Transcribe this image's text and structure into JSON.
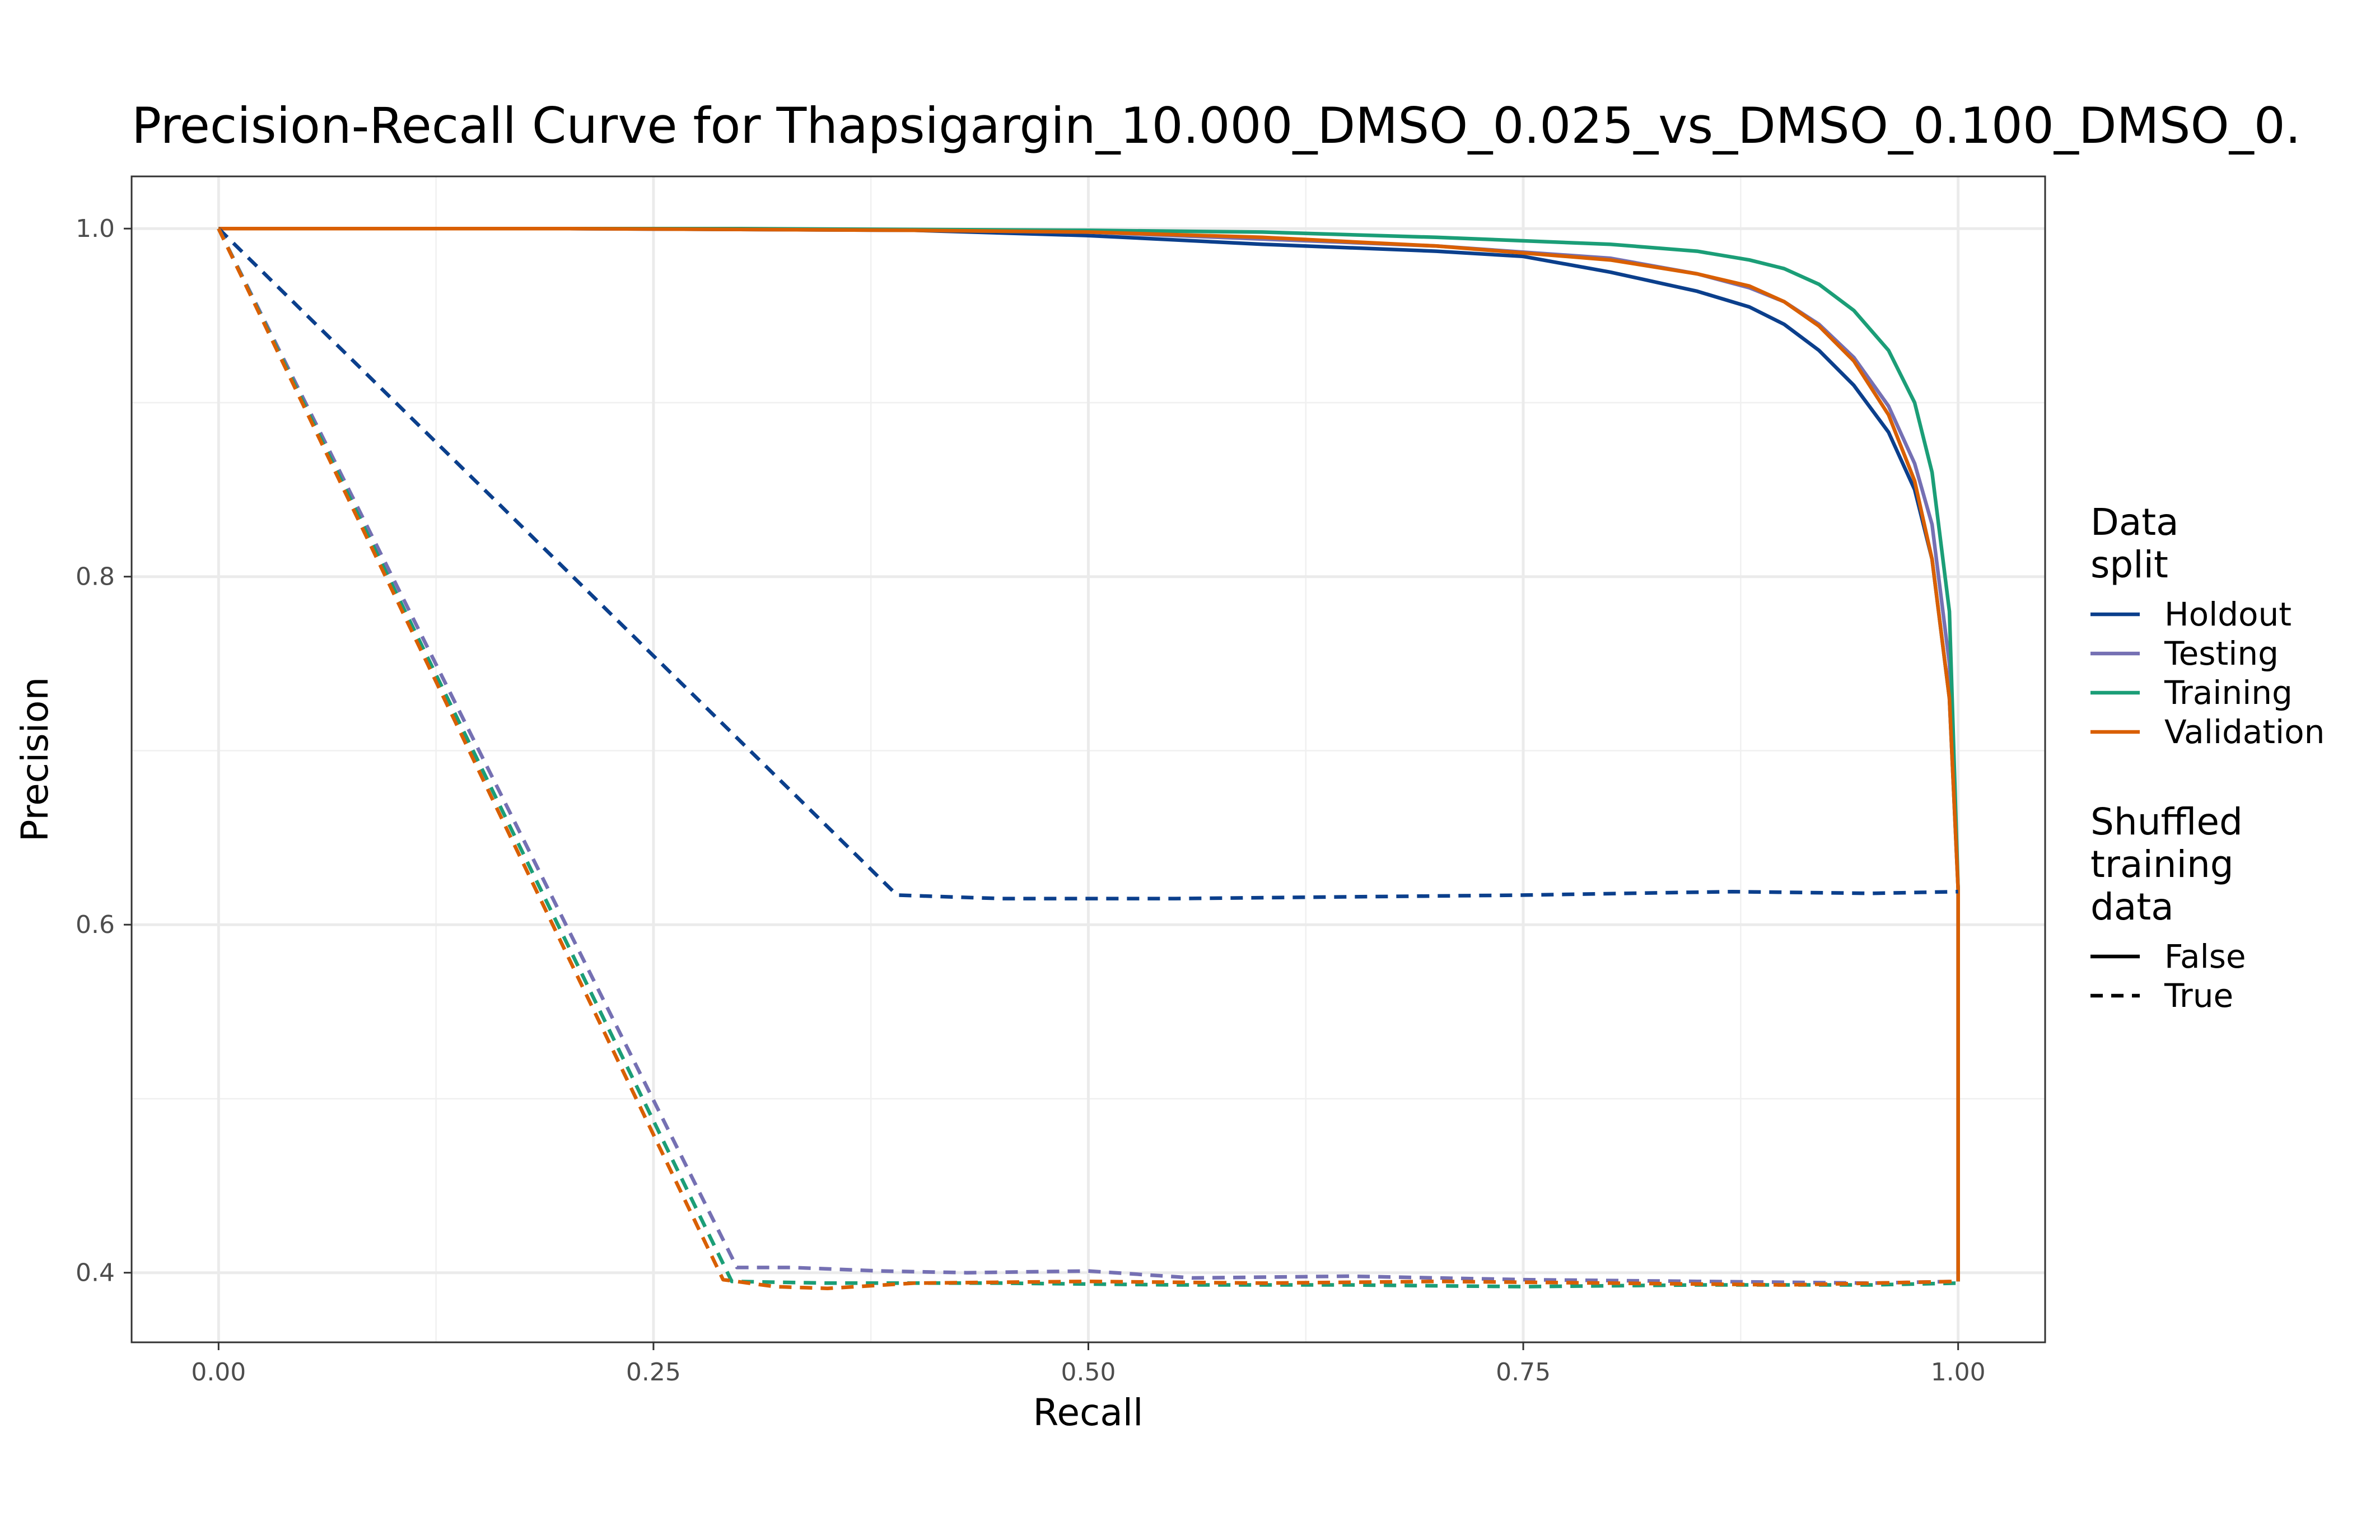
{
  "chart_data": {
    "type": "line",
    "title": "Precision-Recall Curve for Thapsigargin_10.000_DMSO_0.025_vs_DMSO_0.100_DMSO_0.",
    "xlabel": "Recall",
    "ylabel": "Precision",
    "xlim": [
      -0.05,
      1.05
    ],
    "ylim": [
      0.36,
      1.03
    ],
    "x_ticks": [
      "0.00",
      "0.25",
      "0.50",
      "0.75",
      "1.00"
    ],
    "y_ticks": [
      "0.4",
      "0.6",
      "0.8",
      "1.0"
    ],
    "grid": true,
    "legend_placement": "right",
    "legend": {
      "color_title": [
        "Data",
        "split"
      ],
      "linetype_title": [
        "Shuffled",
        "training",
        "data"
      ],
      "color_entries": [
        {
          "name": "Holdout",
          "color": "#0B3F8C"
        },
        {
          "name": "Testing",
          "color": "#7570B3"
        },
        {
          "name": "Training",
          "color": "#1B9E77"
        },
        {
          "name": "Validation",
          "color": "#D95F02"
        }
      ],
      "linetype_entries": [
        {
          "name": "False",
          "dash": "solid"
        },
        {
          "name": "True",
          "dash": "dashed"
        }
      ]
    },
    "series": [
      {
        "split": "Holdout",
        "shuffled": "False",
        "color": "#0B3F8C",
        "points": [
          [
            0,
            1
          ],
          [
            0.2,
            1.0
          ],
          [
            0.4,
            0.999
          ],
          [
            0.5,
            0.996
          ],
          [
            0.6,
            0.991
          ],
          [
            0.7,
            0.987
          ],
          [
            0.75,
            0.984
          ],
          [
            0.8,
            0.975
          ],
          [
            0.85,
            0.964
          ],
          [
            0.88,
            0.955
          ],
          [
            0.9,
            0.945
          ],
          [
            0.92,
            0.93
          ],
          [
            0.94,
            0.91
          ],
          [
            0.96,
            0.883
          ],
          [
            0.975,
            0.85
          ],
          [
            0.985,
            0.81
          ],
          [
            0.995,
            0.73
          ],
          [
            1.0,
            0.62
          ],
          [
            1.0,
            0.395
          ]
        ]
      },
      {
        "split": "Testing",
        "shuffled": "False",
        "color": "#7570B3",
        "points": [
          [
            0,
            1
          ],
          [
            0.2,
            1.0
          ],
          [
            0.4,
            0.999
          ],
          [
            0.5,
            0.998
          ],
          [
            0.6,
            0.994
          ],
          [
            0.7,
            0.99
          ],
          [
            0.8,
            0.983
          ],
          [
            0.85,
            0.974
          ],
          [
            0.88,
            0.966
          ],
          [
            0.9,
            0.958
          ],
          [
            0.92,
            0.945
          ],
          [
            0.94,
            0.926
          ],
          [
            0.96,
            0.898
          ],
          [
            0.975,
            0.865
          ],
          [
            0.985,
            0.83
          ],
          [
            0.995,
            0.75
          ],
          [
            1.0,
            0.62
          ],
          [
            1.0,
            0.395
          ]
        ]
      },
      {
        "split": "Training",
        "shuffled": "False",
        "color": "#1B9E77",
        "points": [
          [
            0,
            1
          ],
          [
            0.3,
            1.0
          ],
          [
            0.5,
            0.999
          ],
          [
            0.6,
            0.998
          ],
          [
            0.7,
            0.995
          ],
          [
            0.8,
            0.991
          ],
          [
            0.85,
            0.987
          ],
          [
            0.88,
            0.982
          ],
          [
            0.9,
            0.977
          ],
          [
            0.92,
            0.968
          ],
          [
            0.94,
            0.953
          ],
          [
            0.96,
            0.93
          ],
          [
            0.975,
            0.9
          ],
          [
            0.985,
            0.86
          ],
          [
            0.995,
            0.78
          ],
          [
            1.0,
            0.62
          ],
          [
            1.0,
            0.395
          ]
        ]
      },
      {
        "split": "Validation",
        "shuffled": "False",
        "color": "#D95F02",
        "points": [
          [
            0,
            1
          ],
          [
            0.2,
            1.0
          ],
          [
            0.4,
            0.999
          ],
          [
            0.5,
            0.998
          ],
          [
            0.6,
            0.995
          ],
          [
            0.7,
            0.99
          ],
          [
            0.8,
            0.982
          ],
          [
            0.85,
            0.974
          ],
          [
            0.88,
            0.967
          ],
          [
            0.9,
            0.958
          ],
          [
            0.92,
            0.944
          ],
          [
            0.94,
            0.924
          ],
          [
            0.96,
            0.893
          ],
          [
            0.975,
            0.855
          ],
          [
            0.985,
            0.81
          ],
          [
            0.995,
            0.73
          ],
          [
            1.0,
            0.62
          ],
          [
            1.0,
            0.395
          ]
        ]
      },
      {
        "split": "Holdout",
        "shuffled": "True",
        "color": "#0B3F8C",
        "points": [
          [
            0,
            1
          ],
          [
            0.39,
            0.617
          ],
          [
            0.45,
            0.615
          ],
          [
            0.55,
            0.615
          ],
          [
            0.65,
            0.616
          ],
          [
            0.75,
            0.617
          ],
          [
            0.87,
            0.619
          ],
          [
            0.95,
            0.618
          ],
          [
            1.0,
            0.619
          ]
        ]
      },
      {
        "split": "Testing",
        "shuffled": "True",
        "color": "#7570B3",
        "points": [
          [
            0,
            1
          ],
          [
            0.298,
            0.403
          ],
          [
            0.33,
            0.403
          ],
          [
            0.38,
            0.401
          ],
          [
            0.43,
            0.4
          ],
          [
            0.5,
            0.401
          ],
          [
            0.56,
            0.397
          ],
          [
            0.65,
            0.398
          ],
          [
            0.75,
            0.396
          ],
          [
            0.85,
            0.395
          ],
          [
            0.95,
            0.394
          ],
          [
            1.0,
            0.395
          ]
        ]
      },
      {
        "split": "Training",
        "shuffled": "True",
        "color": "#1B9E77",
        "points": [
          [
            0,
            1
          ],
          [
            0.295,
            0.395
          ],
          [
            0.35,
            0.394
          ],
          [
            0.45,
            0.394
          ],
          [
            0.55,
            0.393
          ],
          [
            0.65,
            0.393
          ],
          [
            0.75,
            0.392
          ],
          [
            0.85,
            0.393
          ],
          [
            0.95,
            0.393
          ],
          [
            1.0,
            0.394
          ]
        ]
      },
      {
        "split": "Validation",
        "shuffled": "True",
        "color": "#D95F02",
        "points": [
          [
            0,
            1
          ],
          [
            0.29,
            0.396
          ],
          [
            0.32,
            0.392
          ],
          [
            0.35,
            0.391
          ],
          [
            0.4,
            0.394
          ],
          [
            0.5,
            0.395
          ],
          [
            0.6,
            0.394
          ],
          [
            0.7,
            0.395
          ],
          [
            0.8,
            0.394
          ],
          [
            0.9,
            0.393
          ],
          [
            1.0,
            0.395
          ]
        ]
      }
    ]
  }
}
